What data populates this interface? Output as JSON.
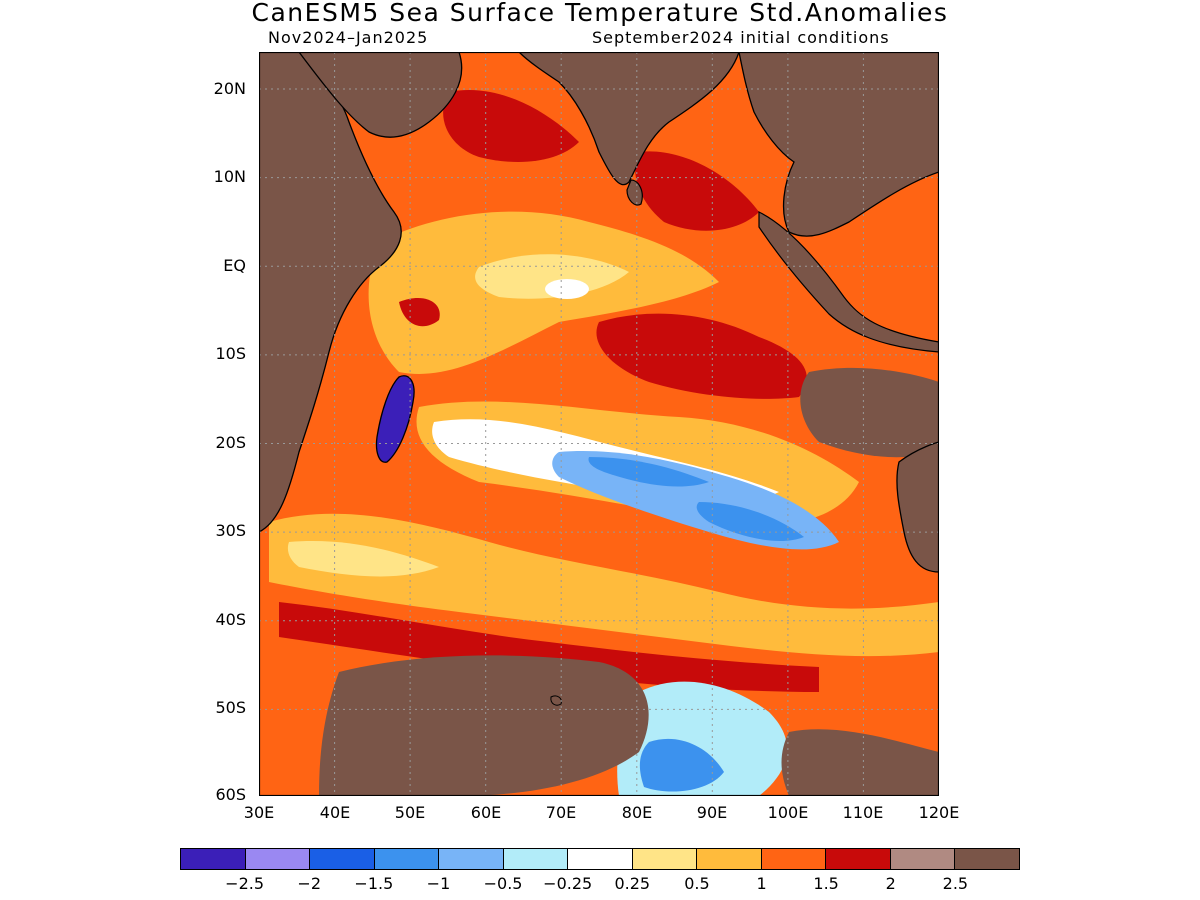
{
  "title": "CanESM5 Sea Surface Temperature Std.Anomalies",
  "subtitle_left": "Nov2024–Jan2025",
  "subtitle_right": "September2024 initial conditions",
  "map": {
    "lat_range": [
      "60S",
      "24N"
    ],
    "lon_range": [
      "30E",
      "120E"
    ],
    "land_color": "#7a5548",
    "coastline_color": "#000000",
    "grid": "dotted"
  },
  "y_ticks": [
    "20N",
    "10N",
    "EQ",
    "10S",
    "20S",
    "30S",
    "40S",
    "50S",
    "60S"
  ],
  "x_ticks": [
    "30E",
    "40E",
    "50E",
    "60E",
    "70E",
    "80E",
    "90E",
    "100E",
    "110E",
    "120E"
  ],
  "colorbar": {
    "colors": [
      "#3b1fb8",
      "#9a88f2",
      "#1a5fe6",
      "#3c92ee",
      "#78b4f7",
      "#b2ecf9",
      "#ffffff",
      "#ffe487",
      "#ffbb3c",
      "#ff6414",
      "#c80a0a",
      "#b08a82",
      "#7a5548"
    ],
    "labels": [
      "−2.5",
      "−2",
      "−1.5",
      "−1",
      "−0.5",
      "−0.25",
      "0.25",
      "0.5",
      "1",
      "1.5",
      "2",
      "2.5"
    ]
  }
}
